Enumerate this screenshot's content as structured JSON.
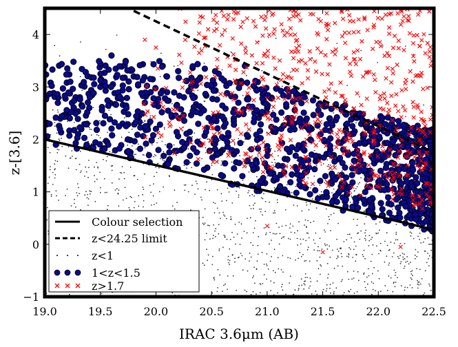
{
  "chart_data": {
    "type": "scatter",
    "xlabel": "IRAC 3.6μm (AB)",
    "ylabel": "z-[3.6]",
    "xlim": [
      19.0,
      22.5
    ],
    "ylim": [
      -1.0,
      4.5
    ],
    "xticks": [
      "19.0",
      "19.5",
      "20.0",
      "20.5",
      "21.0",
      "21.5",
      "22.0",
      "22.5"
    ],
    "yticks": [
      "−1",
      "0",
      "1",
      "2",
      "3",
      "4"
    ],
    "grid": false,
    "legend_position": "bottom-left",
    "legend": [
      {
        "label": "Colour selection",
        "marker": "solid-line"
      },
      {
        "label": "z<24.25 limit",
        "marker": "dashed-line"
      },
      {
        "label": "z<1",
        "marker": "dot"
      },
      {
        "label": "1<z<1.5",
        "marker": "circle"
      },
      {
        "label": "z>1.7",
        "marker": "x"
      }
    ],
    "lines": [
      {
        "name": "Colour selection",
        "style": "solid",
        "color": "#000000",
        "x": [
          19.0,
          22.5
        ],
        "y": [
          2.0,
          0.28
        ]
      },
      {
        "name": "z<24.25 limit",
        "style": "dashed",
        "color": "#000000",
        "x": [
          19.8,
          22.5
        ],
        "y": [
          4.45,
          1.75
        ]
      }
    ],
    "series_styles": {
      "z<1": {
        "color": "#000000",
        "marker": "dot",
        "count_hint": 1400
      },
      "1<z<1.5": {
        "color": "#0a0a8c",
        "edge": "#000000",
        "marker": "circle",
        "count_hint": 1100
      },
      "z>1.7": {
        "color": "#ff0000",
        "marker": "x",
        "count_hint": 600
      }
    },
    "annotations": {
      "blue_points_sample": [
        [
          19.0,
          2.3
        ],
        [
          19.1,
          1.9
        ],
        [
          19.2,
          2.5
        ],
        [
          19.3,
          2.1
        ],
        [
          19.4,
          2.6
        ],
        [
          19.5,
          3.0
        ],
        [
          19.6,
          3.6
        ],
        [
          19.7,
          2.3
        ],
        [
          19.8,
          3.2
        ],
        [
          19.9,
          2.7
        ],
        [
          20.0,
          2.2
        ],
        [
          20.1,
          2.9
        ],
        [
          20.2,
          3.3
        ],
        [
          20.3,
          2.0
        ],
        [
          20.4,
          2.5
        ],
        [
          20.5,
          3.0
        ],
        [
          20.6,
          1.8
        ],
        [
          20.7,
          2.4
        ],
        [
          20.8,
          3.4
        ],
        [
          20.9,
          1.6
        ],
        [
          21.0,
          2.6
        ],
        [
          21.1,
          1.5
        ],
        [
          21.2,
          2.9
        ],
        [
          21.3,
          1.3
        ],
        [
          21.4,
          2.2
        ],
        [
          21.5,
          0.9
        ],
        [
          21.6,
          1.7
        ],
        [
          21.7,
          2.5
        ],
        [
          21.8,
          0.8
        ],
        [
          21.9,
          1.4
        ],
        [
          22.0,
          2.0
        ],
        [
          22.1,
          0.6
        ],
        [
          22.2,
          1.1
        ],
        [
          22.3,
          0.5
        ],
        [
          22.4,
          1.3
        ],
        [
          22.5,
          0.7
        ]
      ]
    }
  }
}
